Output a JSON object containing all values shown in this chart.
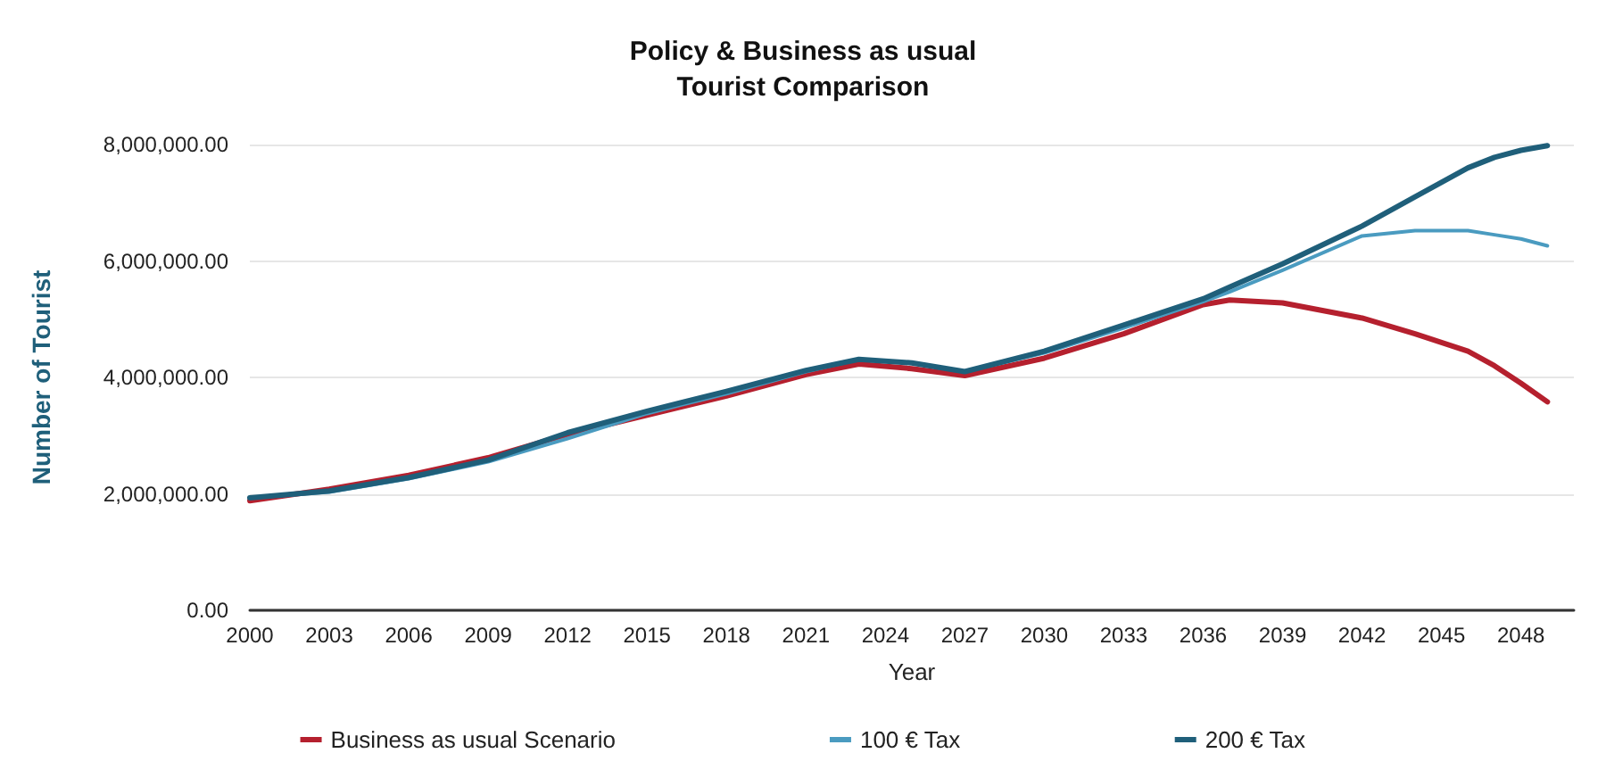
{
  "chart_data": {
    "type": "line",
    "title": "Policy & Business as usual\nTourist Comparison",
    "xlabel": "Year",
    "ylabel": "Number of Tourist",
    "x": [
      2000,
      2003,
      2006,
      2009,
      2012,
      2015,
      2018,
      2021,
      2023,
      2025,
      2027,
      2030,
      2033,
      2036,
      2037,
      2039,
      2042,
      2044,
      2046,
      2047,
      2048,
      2049
    ],
    "series": [
      {
        "name": "Business as usual Scenario",
        "color": "#b5202e",
        "values": [
          1880000,
          2080000,
          2320000,
          2620000,
          3020000,
          3350000,
          3680000,
          4050000,
          4230000,
          4150000,
          4030000,
          4330000,
          4750000,
          5250000,
          5330000,
          5280000,
          5020000,
          4750000,
          4450000,
          4200000,
          3900000,
          3580000
        ]
      },
      {
        "name": "100 € Tax",
        "color": "#4a9bc0",
        "values": [
          1930000,
          2030000,
          2260000,
          2550000,
          2950000,
          3380000,
          3720000,
          4100000,
          4310000,
          4250000,
          4100000,
          4420000,
          4850000,
          5300000,
          5470000,
          5840000,
          6430000,
          6520000,
          6520000,
          6450000,
          6380000,
          6260000
        ]
      },
      {
        "name": "200 € Tax",
        "color": "#1f5f7a",
        "values": [
          1930000,
          2050000,
          2280000,
          2580000,
          3050000,
          3420000,
          3760000,
          4120000,
          4310000,
          4250000,
          4100000,
          4450000,
          4900000,
          5350000,
          5550000,
          5950000,
          6600000,
          7100000,
          7600000,
          7780000,
          7900000,
          7980000
        ]
      }
    ],
    "xlim": [
      2000,
      2050
    ],
    "xticks": [
      2000,
      2003,
      2006,
      2009,
      2012,
      2015,
      2018,
      2021,
      2024,
      2027,
      2030,
      2033,
      2036,
      2039,
      2042,
      2045,
      2048
    ],
    "ylim": [
      0,
      8000000
    ],
    "yticks": [
      {
        "value": 0,
        "label": "0.00"
      },
      {
        "value": 2000000,
        "label": "2,000,000.00"
      },
      {
        "value": 4000000,
        "label": "4,000,000.00"
      },
      {
        "value": 6000000,
        "label": "6,000,000.00"
      },
      {
        "value": 8000000,
        "label": "8,000,000.00"
      }
    ],
    "grid": "y",
    "legend": "bottom",
    "marker": "none",
    "line_style": "solid"
  }
}
